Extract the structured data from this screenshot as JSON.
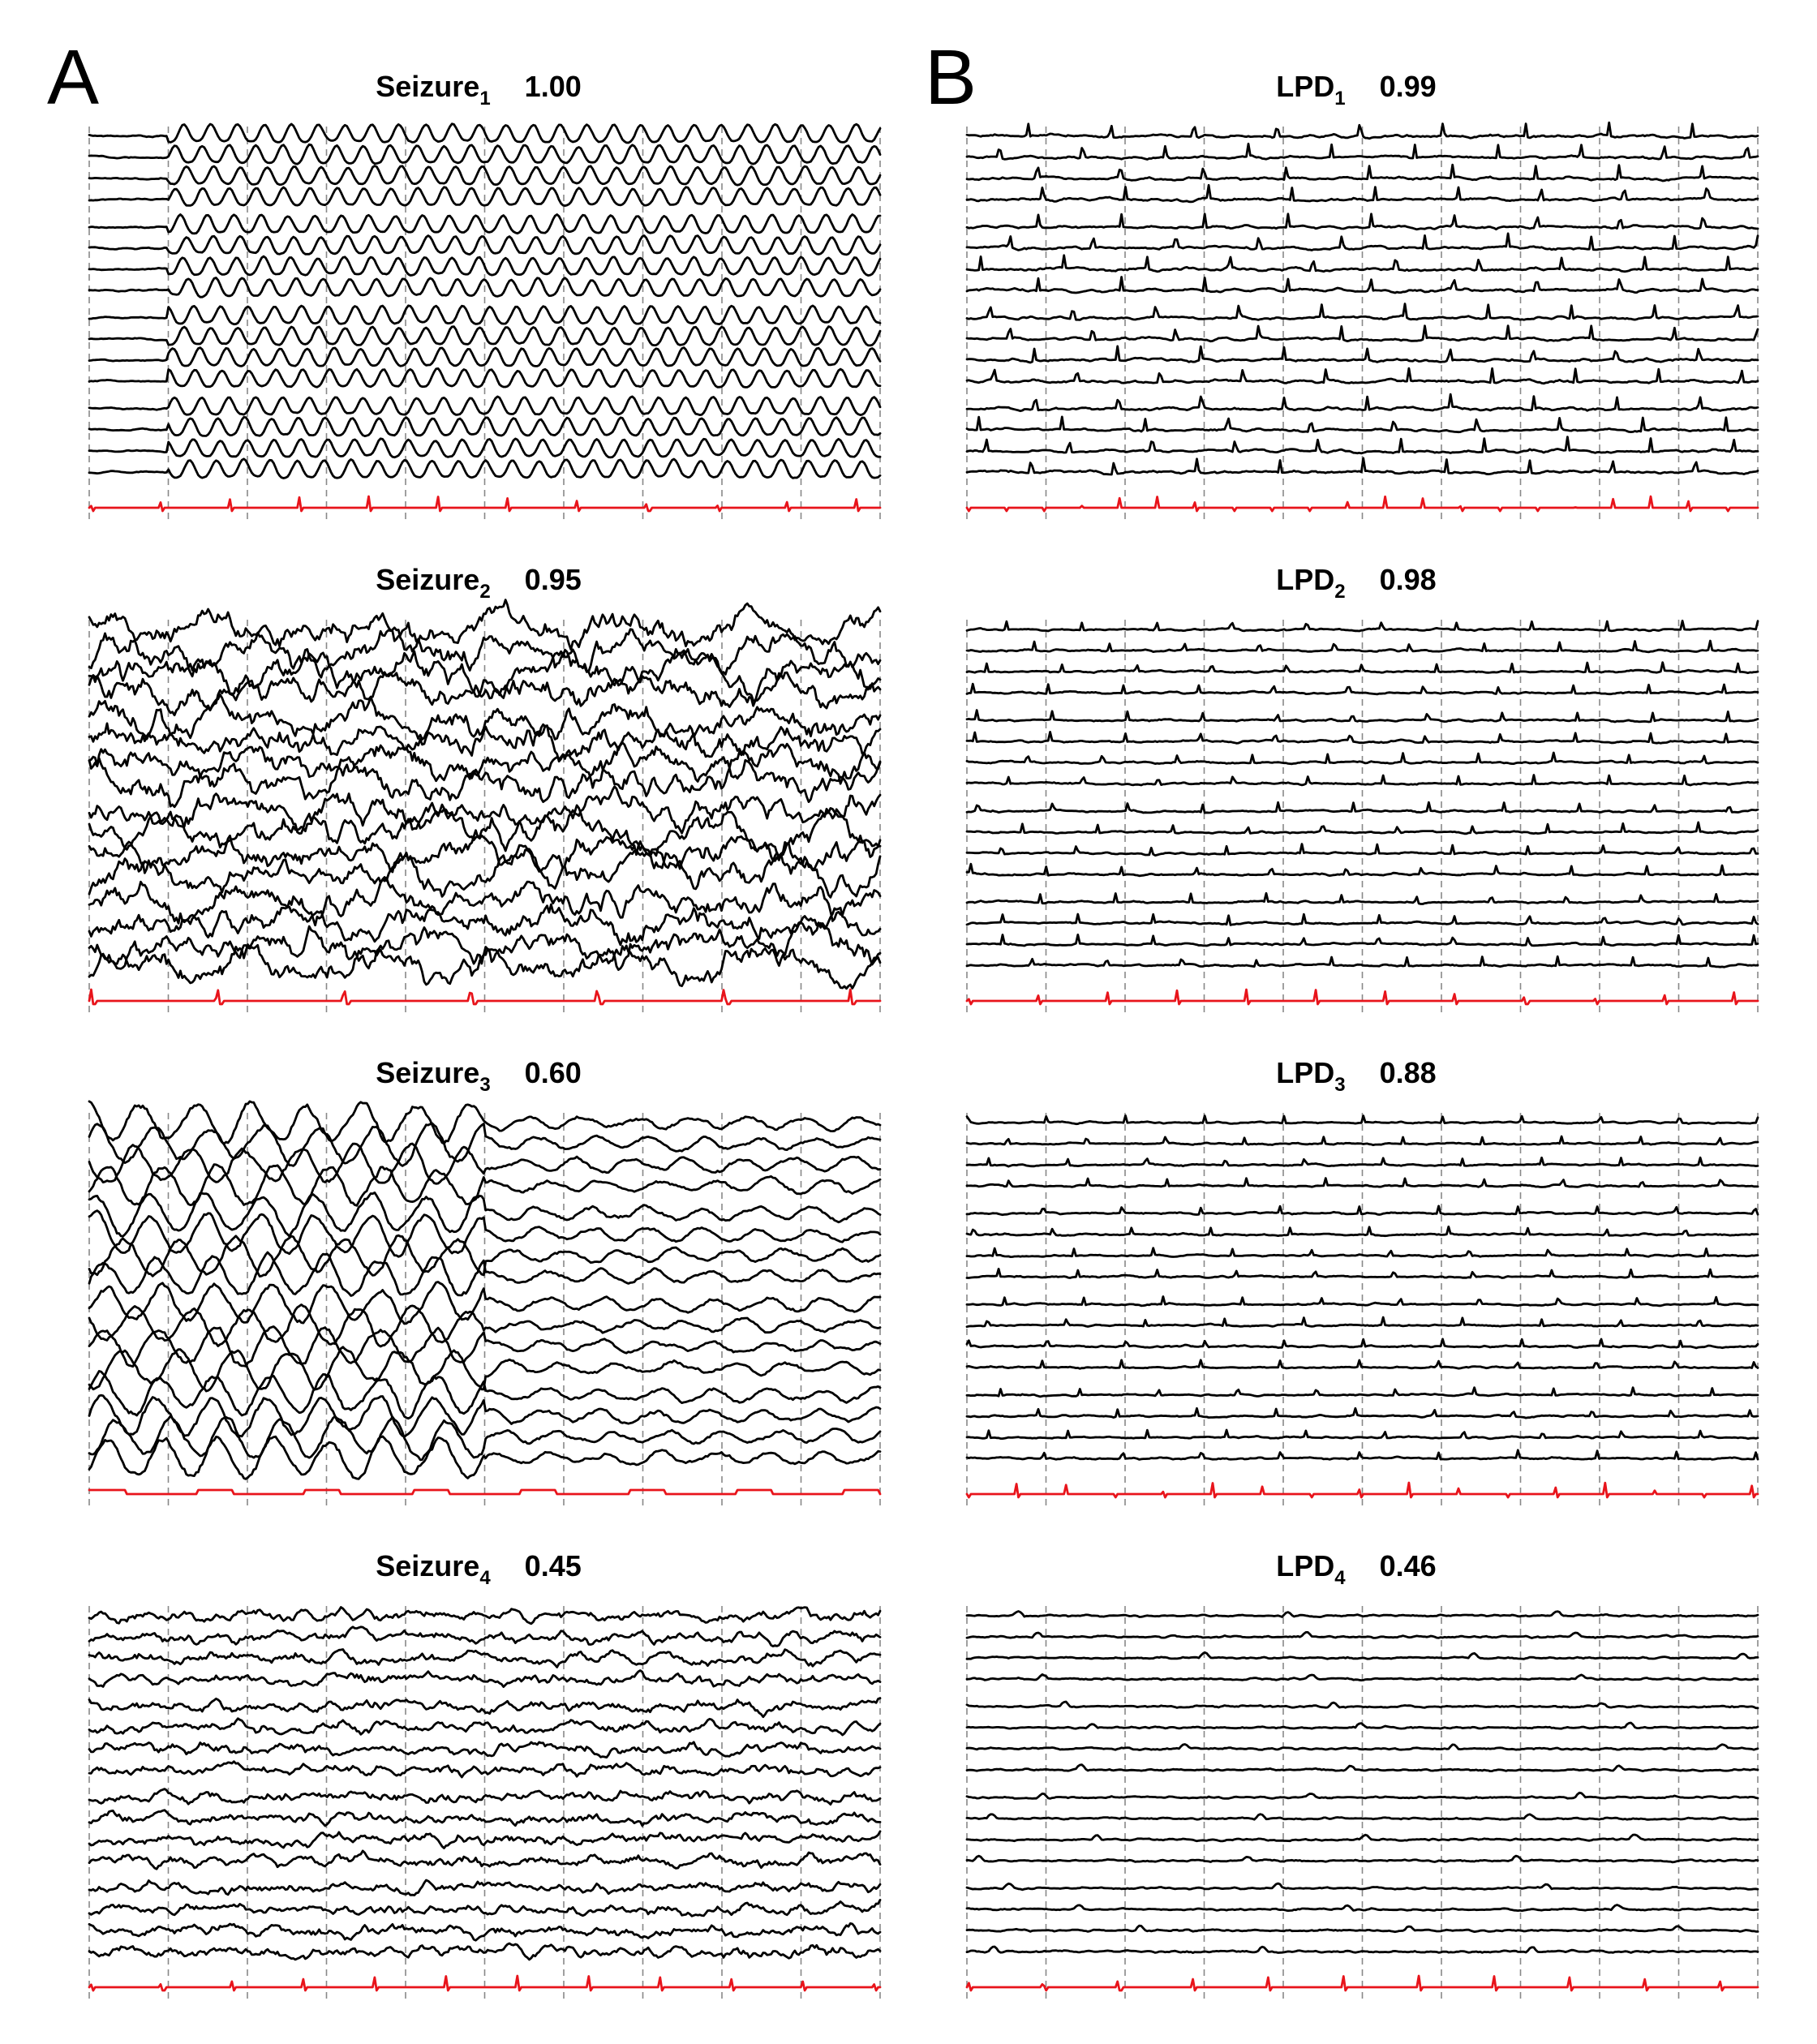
{
  "panel_labels": {
    "a": "A",
    "b": "B"
  },
  "colors": {
    "eeg_trace": "#000000",
    "ekg_trace": "#e8141b",
    "gridline": "#888888"
  },
  "chart_data": [
    {
      "type": "line",
      "panel": "A",
      "title": "Seizure",
      "subscript": "1",
      "score": "1.00",
      "channels": 16,
      "ekg_channel": true,
      "style": "seizure",
      "onset": 0.1,
      "period": 0.034,
      "amp": 13,
      "ekg_period": 0.088,
      "seed": 11
    },
    {
      "type": "line",
      "panel": "A",
      "title": "Seizure",
      "subscript": "2",
      "score": "0.95",
      "channels": 16,
      "ekg_channel": true,
      "style": "chaotic",
      "amp": 28,
      "ekg_period": 0.16,
      "seed": 23
    },
    {
      "type": "line",
      "panel": "A",
      "title": "Seizure",
      "subscript": "3",
      "score": "0.60",
      "channels": 16,
      "ekg_channel": true,
      "style": "decay",
      "amp": 22,
      "ekg_period": 0.0,
      "seed": 37
    },
    {
      "type": "line",
      "panel": "A",
      "title": "Seizure",
      "subscript": "4",
      "score": "0.45",
      "channels": 16,
      "ekg_channel": true,
      "style": "irregular",
      "amp": 9,
      "ekg_period": 0.09,
      "seed": 41
    },
    {
      "type": "line",
      "panel": "B",
      "title": "LPD",
      "subscript": "1",
      "score": "0.99",
      "channels": 16,
      "ekg_channel": true,
      "style": "lpd",
      "period": 0.105,
      "amp": 9,
      "ekg_period": 0.048,
      "seed": 53
    },
    {
      "type": "line",
      "panel": "B",
      "title": "LPD",
      "subscript": "2",
      "score": "0.98",
      "channels": 16,
      "ekg_channel": true,
      "style": "lpd",
      "period": 0.095,
      "amp": 6,
      "ekg_period": 0.088,
      "seed": 61
    },
    {
      "type": "line",
      "panel": "B",
      "title": "LPD",
      "subscript": "3",
      "score": "0.88",
      "channels": 16,
      "ekg_channel": true,
      "style": "lpd",
      "period": 0.1,
      "amp": 5,
      "ekg_period": 0.062,
      "seed": 71
    },
    {
      "type": "line",
      "panel": "B",
      "title": "LPD",
      "subscript": "4",
      "score": "0.46",
      "channels": 16,
      "ekg_channel": true,
      "style": "quiet",
      "period": 0.34,
      "amp": 3,
      "ekg_period": 0.095,
      "seed": 83
    }
  ]
}
